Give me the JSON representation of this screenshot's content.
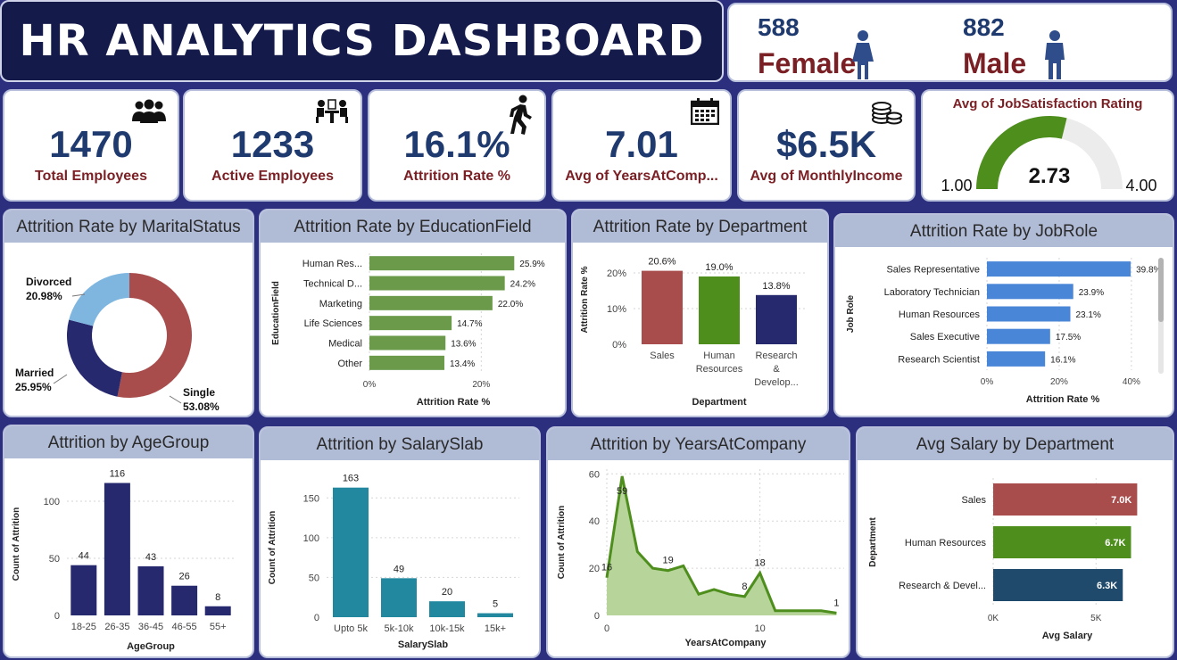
{
  "header": {
    "title": "HR ANALYTICS DASHBOARD"
  },
  "gender": {
    "female_count": "588",
    "female_label": "Female",
    "male_count": "882",
    "male_label": "Male"
  },
  "kpis": [
    {
      "value": "1470",
      "label": "Total Employees",
      "icon": "people-group-icon"
    },
    {
      "value": "1233",
      "label": "Active Employees",
      "icon": "meeting-icon"
    },
    {
      "value": "16.1%",
      "label": "Attrition Rate %",
      "icon": "walking-person-icon"
    },
    {
      "value": "7.01",
      "label": "Avg of YearsAtComp...",
      "icon": "calendar-icon"
    },
    {
      "value": "$6.5K",
      "label": "Avg of MonthlyIncome",
      "icon": "coins-icon"
    }
  ],
  "gauge": {
    "title": "Avg of JobSatisfaction Rating",
    "value": 2.73,
    "value_label": "2.73",
    "min": 1.0,
    "max": 4.0,
    "min_label": "1.00",
    "max_label": "4.00"
  },
  "colors": {
    "dark_navy": "#141a4a",
    "bg": "#2b2f7e",
    "maroon": "#a84c4c",
    "green": "#4e8e1d",
    "navy_bar": "#27296f",
    "olive_bar": "#6a9a4a",
    "blue_bar": "#4a86d8",
    "teal_bar": "#2188a0",
    "dept_teal": "#1f4a6c",
    "area_fill": "#b7d59a",
    "area_line": "#4e8e1d"
  },
  "charts": {
    "marital": {
      "title": "Attrition Rate by MaritalStatus",
      "chart_data": {
        "type": "pie",
        "slices": [
          {
            "label": "Single",
            "value": 53.08,
            "value_label": "53.08%",
            "color": "#a84c4c"
          },
          {
            "label": "Married",
            "value": 25.95,
            "value_label": "25.95%",
            "color": "#27296f"
          },
          {
            "label": "Divorced",
            "value": 20.98,
            "value_label": "20.98%",
            "color": "#7fb6e0"
          }
        ]
      }
    },
    "education": {
      "title": "Attrition Rate by EducationField",
      "chart_data": {
        "type": "bar",
        "orientation": "horizontal",
        "categories": [
          "Human Res...",
          "Technical D...",
          "Marketing",
          "Life Sciences",
          "Medical",
          "Other"
        ],
        "values": [
          25.9,
          24.2,
          22.0,
          14.7,
          13.6,
          13.4
        ],
        "value_labels": [
          "25.9%",
          "24.2%",
          "22.0%",
          "14.7%",
          "13.6%",
          "13.4%"
        ],
        "xlabel": "Attrition Rate %",
        "ylabel": "EducationField",
        "xticks": [
          "0%",
          "20%"
        ],
        "xlim": [
          0,
          30
        ]
      }
    },
    "department": {
      "title": "Attrition Rate by Department",
      "chart_data": {
        "type": "bar",
        "categories": [
          "Sales",
          "Human Resources",
          "Research & Develop..."
        ],
        "values": [
          20.6,
          19.0,
          13.8
        ],
        "value_labels": [
          "20.6%",
          "19.0%",
          "13.8%"
        ],
        "colors": [
          "#a84c4c",
          "#4e8e1d",
          "#27296f"
        ],
        "xlabel": "Department",
        "ylabel": "Attrition Rate %",
        "yticks": [
          "0%",
          "10%",
          "20%"
        ],
        "ylim": [
          0,
          25
        ]
      }
    },
    "jobrole": {
      "title": "Attrition Rate by JobRole",
      "chart_data": {
        "type": "bar",
        "orientation": "horizontal",
        "categories": [
          "Sales Representative",
          "Laboratory Technician",
          "Human Resources",
          "Sales Executive",
          "Research Scientist"
        ],
        "values": [
          39.8,
          23.9,
          23.1,
          17.5,
          16.1
        ],
        "value_labels": [
          "39.8%",
          "23.9%",
          "23.1%",
          "17.5%",
          "16.1%"
        ],
        "xlabel": "Attrition Rate %",
        "ylabel": "Job Role",
        "xticks": [
          "0%",
          "20%",
          "40%"
        ],
        "xlim": [
          0,
          42
        ]
      }
    },
    "agegroup": {
      "title": "Attrition by AgeGroup",
      "chart_data": {
        "type": "bar",
        "categories": [
          "18-25",
          "26-35",
          "36-45",
          "46-55",
          "55+"
        ],
        "values": [
          44,
          116,
          43,
          26,
          8
        ],
        "xlabel": "AgeGroup",
        "ylabel": "Count of Attrition",
        "yticks": [
          "0",
          "50",
          "100"
        ],
        "ylim": [
          0,
          125
        ]
      }
    },
    "salaryslab": {
      "title": "Attrition by SalarySlab",
      "chart_data": {
        "type": "bar",
        "categories": [
          "Upto 5k",
          "5k-10k",
          "10k-15k",
          "15k+"
        ],
        "values": [
          163,
          49,
          20,
          5
        ],
        "xlabel": "SalarySlab",
        "ylabel": "Count of Attrition",
        "yticks": [
          "0",
          "50",
          "100",
          "150"
        ],
        "ylim": [
          0,
          175
        ]
      }
    },
    "years": {
      "title": "Attrition by YearsAtCompany",
      "chart_data": {
        "type": "area",
        "x": [
          0,
          1,
          2,
          3,
          4,
          5,
          6,
          7,
          8,
          9,
          10,
          11,
          12,
          13,
          14,
          15
        ],
        "y": [
          16,
          59,
          27,
          20,
          19,
          21,
          9,
          11,
          9,
          8,
          18,
          2,
          2,
          2,
          2,
          1
        ],
        "point_labels": {
          "0": "16",
          "1": "59",
          "4": "19",
          "9": "8",
          "10": "18",
          "15": "1"
        },
        "xlabel": "YearsAtCompany",
        "ylabel": "Count of Attrition",
        "xticks": [
          "0",
          "10"
        ],
        "yticks": [
          "0",
          "20",
          "40",
          "60"
        ],
        "xlim": [
          0,
          15.5
        ],
        "ylim": [
          0,
          62
        ]
      }
    },
    "avgsalary": {
      "title": "Avg Salary by Department",
      "chart_data": {
        "type": "bar",
        "orientation": "horizontal",
        "categories": [
          "Sales",
          "Human Resources",
          "Research & Devel..."
        ],
        "values": [
          7.0,
          6.7,
          6.3
        ],
        "value_labels": [
          "7.0K",
          "6.7K",
          "6.3K"
        ],
        "colors": [
          "#a84c4c",
          "#4e8e1d",
          "#1f4a6c"
        ],
        "xlabel": "Avg Salary",
        "ylabel": "Department",
        "xticks": [
          "0K",
          "5K"
        ],
        "xlim": [
          0,
          7.2
        ]
      }
    }
  }
}
